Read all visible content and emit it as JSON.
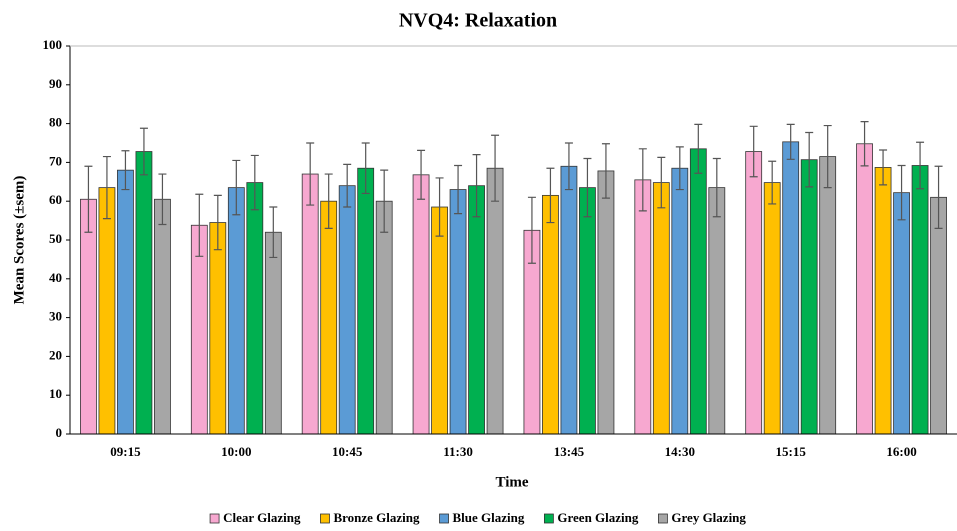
{
  "chart_data": {
    "type": "bar",
    "title": "NVQ4: Relaxation",
    "x_label": "Time",
    "y_label": "Mean Scores (±sem)",
    "categories": [
      "09:15",
      "10:00",
      "10:45",
      "11:30",
      "13:45",
      "14:30",
      "15:15",
      "16:00"
    ],
    "series": [
      {
        "name": "Clear Glazing",
        "color": "#f7a8d0",
        "values": [
          60.5,
          53.8,
          67,
          66.8,
          52.5,
          65.5,
          72.8,
          74.8
        ],
        "errors": [
          8.5,
          8,
          8,
          6.3,
          8.5,
          8,
          6.5,
          5.7
        ]
      },
      {
        "name": "Bronze Glazing",
        "color": "#ffc000",
        "values": [
          63.5,
          54.5,
          60,
          58.5,
          61.5,
          64.8,
          64.8,
          68.7
        ],
        "errors": [
          8,
          7,
          7,
          7.5,
          7,
          6.5,
          5.5,
          4.5
        ]
      },
      {
        "name": "Blue Glazing",
        "color": "#5b9bd5",
        "values": [
          68,
          63.5,
          64,
          63,
          69,
          68.5,
          75.3,
          62.2
        ],
        "errors": [
          5,
          7,
          5.5,
          6.2,
          6,
          5.5,
          4.5,
          7
        ]
      },
      {
        "name": "Green Glazing",
        "color": "#00b050",
        "values": [
          72.8,
          64.8,
          68.5,
          64,
          63.5,
          73.5,
          70.7,
          69.2
        ],
        "errors": [
          6,
          7,
          6.5,
          8,
          7.5,
          6.3,
          7,
          6
        ]
      },
      {
        "name": "Grey Glazing",
        "color": "#a6a6a6",
        "values": [
          60.5,
          52,
          60,
          68.5,
          67.8,
          63.5,
          71.5,
          61
        ],
        "errors": [
          6.5,
          6.5,
          8,
          8.5,
          7,
          7.5,
          8,
          8
        ]
      }
    ],
    "ylim": [
      0,
      100
    ],
    "yticks": [
      0,
      10,
      20,
      30,
      40,
      50,
      60,
      70,
      80,
      90,
      100
    ],
    "grid": false,
    "legend": "bottom"
  }
}
